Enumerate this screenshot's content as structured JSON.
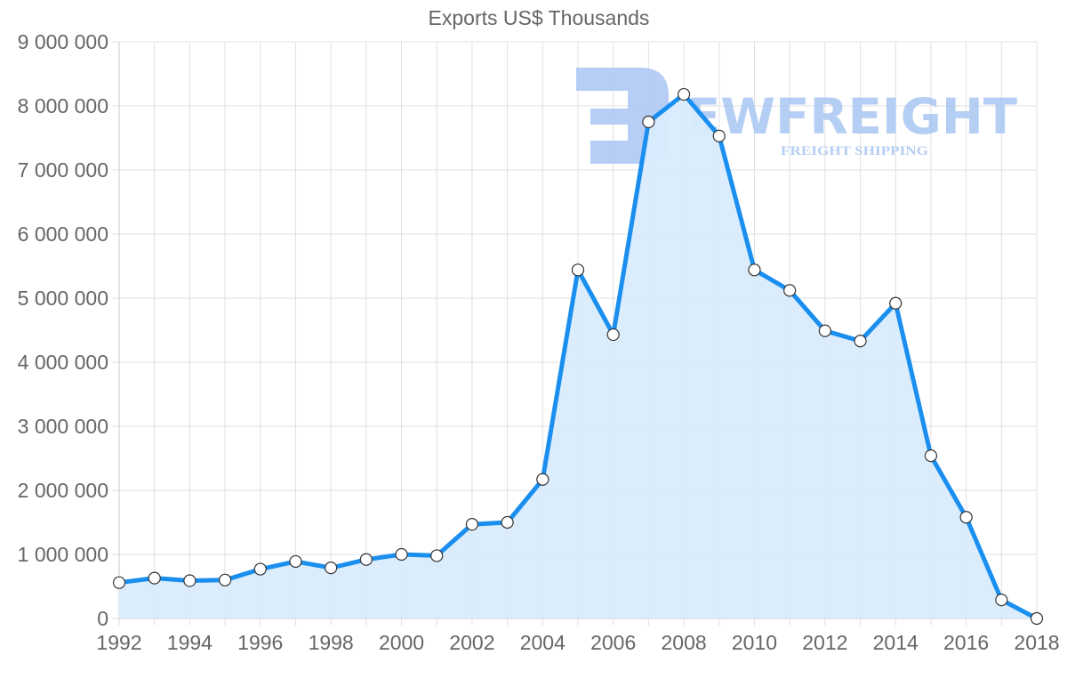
{
  "chart_data": {
    "type": "area",
    "title": "Exports US$ Thousands",
    "xlabel": "",
    "ylabel": "",
    "x": [
      1992,
      1993,
      1994,
      1995,
      1996,
      1997,
      1998,
      1999,
      2000,
      2001,
      2002,
      2003,
      2004,
      2005,
      2006,
      2007,
      2008,
      2009,
      2010,
      2011,
      2012,
      2013,
      2014,
      2015,
      2016,
      2017,
      2018
    ],
    "series": [
      {
        "name": "Exports US$ Thousands",
        "values": [
          560000,
          630000,
          590000,
          600000,
          770000,
          890000,
          790000,
          920000,
          1000000,
          980000,
          1470000,
          1500000,
          2170000,
          5440000,
          4430000,
          7750000,
          8180000,
          7530000,
          5440000,
          5120000,
          4490000,
          4330000,
          4920000,
          2540000,
          1580000,
          290000,
          0
        ]
      }
    ],
    "x_tick_labels": [
      "1992",
      "1994",
      "1996",
      "1998",
      "2000",
      "2002",
      "2004",
      "2006",
      "2008",
      "2010",
      "2012",
      "2014",
      "2016",
      "2018"
    ],
    "y_tick_labels": [
      "0",
      "1 000 000",
      "2 000 000",
      "3 000 000",
      "4 000 000",
      "5 000 000",
      "6 000 000",
      "7 000 000",
      "8 000 000",
      "9 000 000"
    ],
    "ylim": [
      0,
      9000000
    ],
    "xlim": [
      1992,
      2018
    ],
    "grid": true,
    "legend": "none",
    "colors": {
      "line": "#1a8fef",
      "fill": "#d9ecfc",
      "point_fill": "#ffffff",
      "point_stroke": "#333333",
      "grid": "#e0e0e0",
      "text": "#666666"
    }
  },
  "watermark": {
    "brand": "EWFREIGHT",
    "tagline": "FREIGHT SHIPPING",
    "color": "#a9c6f3"
  }
}
